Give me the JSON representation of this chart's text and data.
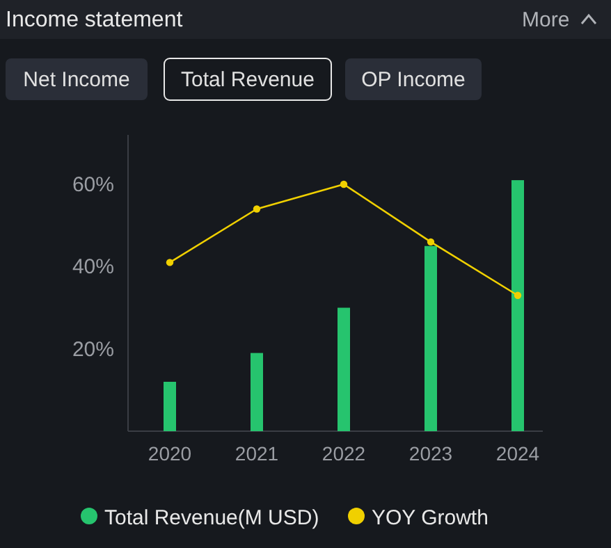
{
  "chart_data": {
    "type": "bar",
    "title": "Income statement",
    "annotations": [
      "More",
      "Net Income",
      "Total Revenue",
      "OP Income"
    ],
    "categories": [
      "2020",
      "2021",
      "2022",
      "2023",
      "2024"
    ],
    "series": [
      {
        "name": "Total Revenue(M USD)",
        "color": "#26c46e",
        "values": [
          12,
          19,
          30,
          45,
          61
        ]
      },
      {
        "name": "YOY Growth",
        "type": "line",
        "color": "#f0d000",
        "values": [
          41,
          54,
          60,
          46,
          33
        ]
      }
    ],
    "ylim": [
      0,
      72
    ],
    "yticks": [
      {
        "value": 20,
        "label": "20%"
      },
      {
        "value": 40,
        "label": "40%"
      },
      {
        "value": 60,
        "label": "60%"
      }
    ],
    "marker": "circle",
    "line_style": "solid",
    "legend": "bottom"
  }
}
